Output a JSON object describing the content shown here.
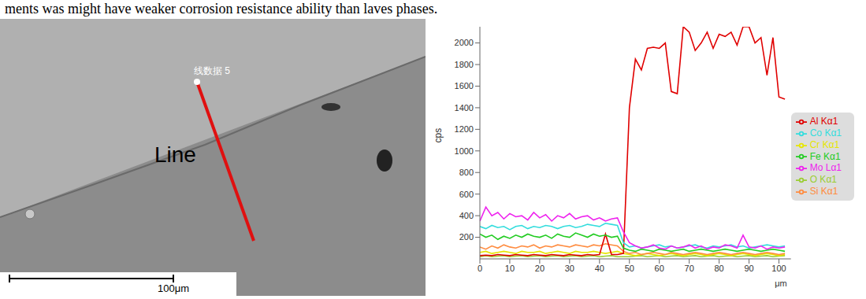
{
  "text": "ments was might have weaker corrosion resistance ability than laves phases.",
  "image": {
    "marker_label": "线数据 5",
    "annotation": "Line",
    "scale_bar": "100μm"
  },
  "chart_data": {
    "type": "line",
    "xlabel": "μm",
    "ylabel": "cps",
    "x": [
      0,
      2,
      4,
      6,
      8,
      10,
      12,
      14,
      16,
      18,
      20,
      22,
      24,
      26,
      28,
      30,
      32,
      34,
      36,
      38,
      40,
      42,
      44,
      46,
      48,
      50,
      52,
      54,
      56,
      58,
      60,
      62,
      64,
      66,
      68,
      70,
      72,
      74,
      76,
      78,
      80,
      82,
      84,
      86,
      88,
      90,
      92,
      94,
      96,
      98,
      100,
      102
    ],
    "series": [
      {
        "name": "O Kα1",
        "color": "#9acd32",
        "values": [
          20,
          30,
          20,
          25,
          30,
          20,
          25,
          30,
          20,
          25,
          30,
          20,
          25,
          30,
          20,
          25,
          30,
          20,
          25,
          30,
          20,
          25,
          30,
          20,
          20,
          20,
          25,
          30,
          20,
          25,
          30,
          20,
          25,
          30,
          20,
          25,
          30,
          20,
          25,
          30,
          20,
          25,
          30,
          20,
          25,
          30,
          20,
          25,
          30,
          20,
          25,
          30
        ]
      },
      {
        "name": "Cr Kα1",
        "color": "#e6e600",
        "values": [
          60,
          70,
          50,
          60,
          70,
          60,
          50,
          70,
          60,
          60,
          70,
          50,
          60,
          70,
          60,
          50,
          70,
          60,
          60,
          70,
          60,
          50,
          60,
          70,
          50,
          40,
          30,
          40,
          50,
          40,
          30,
          40,
          50,
          40,
          30,
          40,
          50,
          40,
          30,
          40,
          50,
          40,
          30,
          40,
          50,
          40,
          30,
          40,
          50,
          40,
          30,
          40
        ]
      },
      {
        "name": "Si Kα1",
        "color": "#ff8c40",
        "values": [
          110,
          90,
          120,
          100,
          130,
          110,
          100,
          120,
          110,
          130,
          100,
          120,
          110,
          130,
          120,
          110,
          130,
          120,
          110,
          130,
          120,
          140,
          130,
          120,
          70,
          50,
          60,
          40,
          50,
          60,
          50,
          40,
          60,
          50,
          40,
          50,
          60,
          50,
          40,
          50,
          60,
          50,
          40,
          50,
          60,
          50,
          40,
          50,
          60,
          50,
          40,
          50
        ]
      },
      {
        "name": "Al Kα1",
        "color": "#e00000",
        "values": [
          30,
          35,
          30,
          40,
          35,
          30,
          40,
          35,
          30,
          40,
          35,
          30,
          40,
          35,
          30,
          40,
          35,
          30,
          40,
          35,
          40,
          230,
          40,
          40,
          50,
          1400,
          1850,
          1750,
          1950,
          1960,
          1950,
          2000,
          1550,
          1530,
          2150,
          2100,
          1930,
          2000,
          2100,
          1950,
          2080,
          2060,
          2100,
          1980,
          2150,
          2150,
          2000,
          2050,
          1700,
          2050,
          1500,
          1480
        ]
      },
      {
        "name": "Fe Kα1",
        "color": "#22cc22",
        "values": [
          230,
          200,
          220,
          180,
          210,
          190,
          220,
          200,
          230,
          210,
          200,
          220,
          190,
          230,
          210,
          200,
          240,
          220,
          200,
          230,
          210,
          220,
          200,
          210,
          100,
          80,
          70,
          90,
          80,
          70,
          90,
          80,
          70,
          80,
          90,
          70,
          80,
          90,
          80,
          70,
          80,
          90,
          80,
          70,
          80,
          90,
          80,
          70,
          80,
          90,
          80,
          70
        ]
      },
      {
        "name": "Co Kα1",
        "color": "#33dddd",
        "values": [
          300,
          280,
          310,
          290,
          300,
          270,
          300,
          310,
          280,
          300,
          290,
          310,
          300,
          280,
          300,
          310,
          290,
          300,
          320,
          310,
          300,
          330,
          320,
          310,
          150,
          110,
          120,
          100,
          110,
          120,
          130,
          110,
          120,
          100,
          110,
          120,
          130,
          110,
          100,
          120,
          110,
          120,
          130,
          110,
          120,
          100,
          110,
          120,
          130,
          120,
          110,
          120
        ]
      },
      {
        "name": "Mo Lα1",
        "color": "#ee22ee",
        "values": [
          350,
          480,
          400,
          430,
          370,
          420,
          390,
          400,
          360,
          430,
          380,
          410,
          350,
          400,
          380,
          420,
          370,
          390,
          400,
          360,
          380,
          350,
          370,
          380,
          250,
          150,
          120,
          100,
          110,
          130,
          100,
          90,
          120,
          100,
          110,
          130,
          100,
          120,
          90,
          110,
          100,
          130,
          120,
          100,
          220,
          110,
          100,
          120,
          90,
          110,
          100,
          110
        ]
      }
    ],
    "xlim": [
      0,
      104
    ],
    "xticks": [
      0,
      10,
      20,
      30,
      40,
      50,
      60,
      70,
      80,
      90,
      100
    ],
    "ylim": [
      0,
      2150
    ],
    "yticks": [
      200,
      400,
      600,
      800,
      1000,
      1200,
      1400,
      1600,
      1800,
      2000
    ],
    "legend": "right",
    "grid": false
  }
}
